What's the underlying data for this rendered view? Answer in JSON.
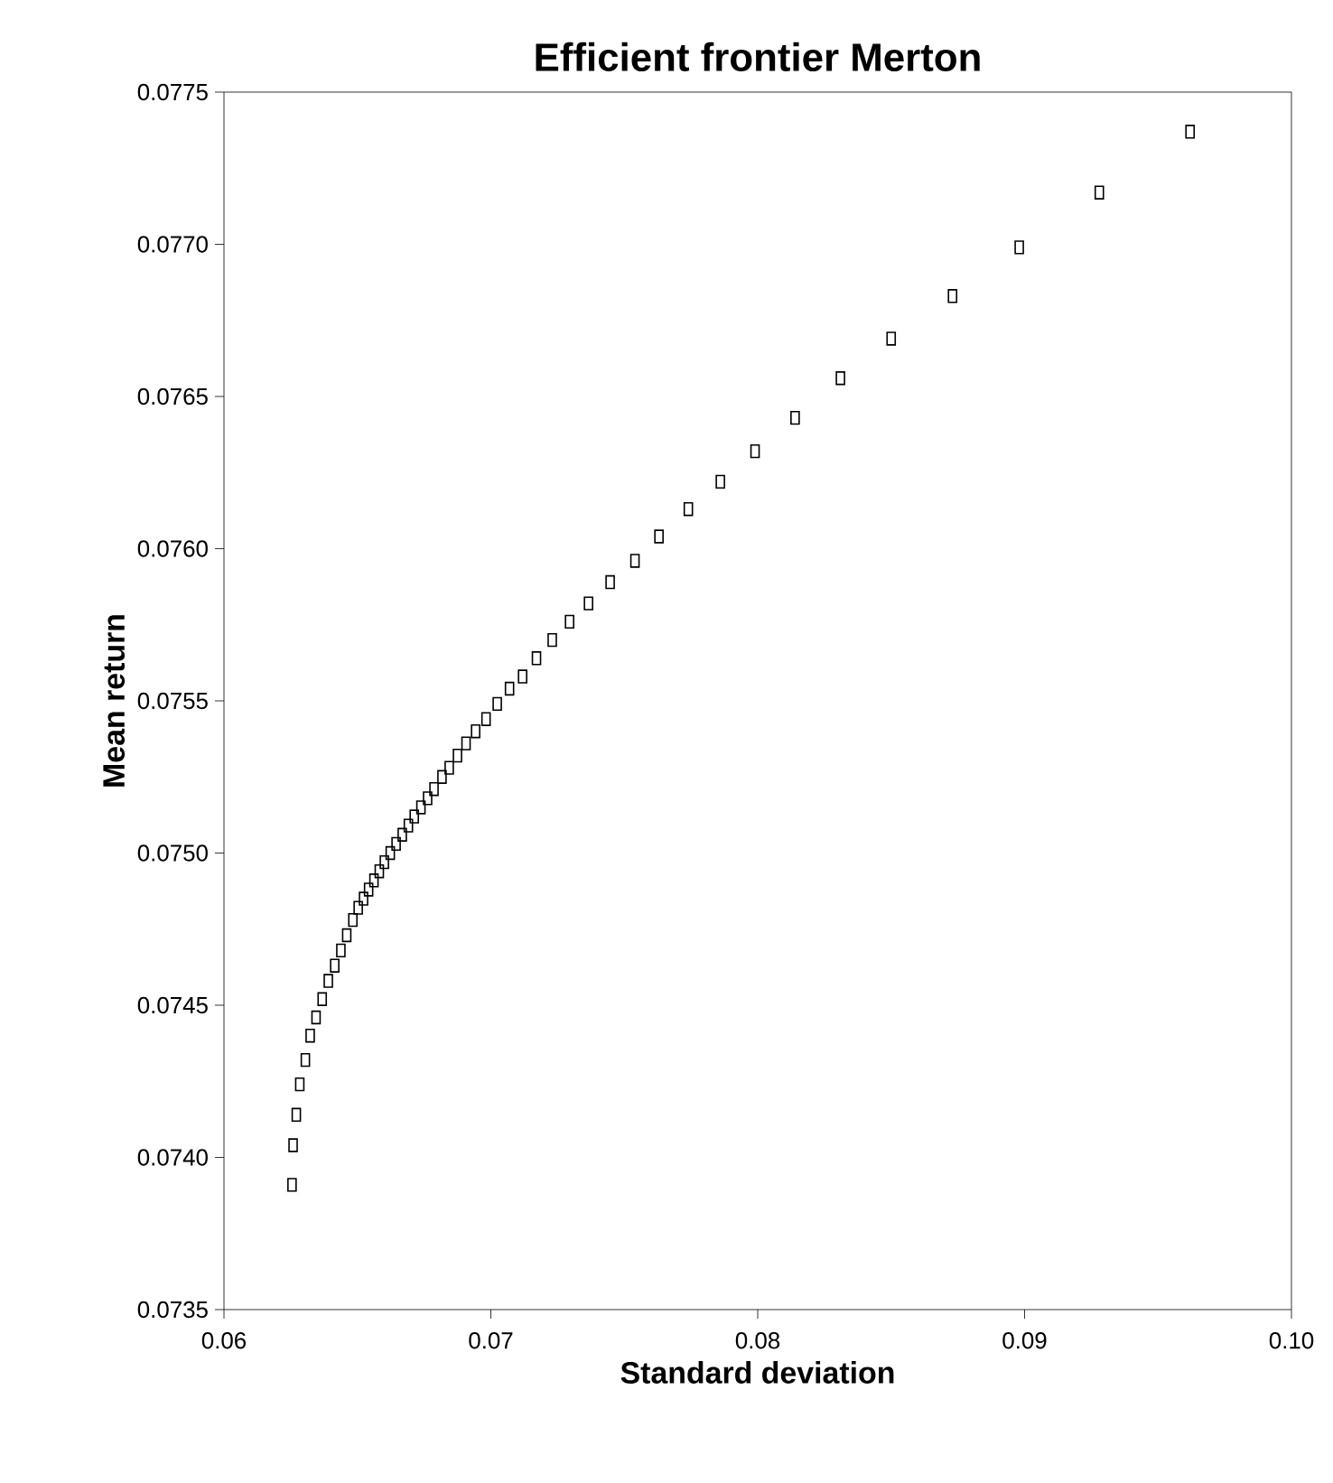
{
  "chart_data": {
    "type": "scatter",
    "title": "Efficient frontier Merton",
    "xlabel": "Standard deviation",
    "ylabel": "Mean return",
    "marker": "square",
    "xlim": [
      0.06,
      0.1
    ],
    "ylim": [
      0.0735,
      0.0775
    ],
    "xticks": [
      {
        "value": 0.06,
        "label": "0.06"
      },
      {
        "value": 0.07,
        "label": "0.07"
      },
      {
        "value": 0.08,
        "label": "0.08"
      },
      {
        "value": 0.09,
        "label": "0.09"
      },
      {
        "value": 0.1,
        "label": "0.10"
      }
    ],
    "yticks": [
      {
        "value": 0.0735,
        "label": "0.0735"
      },
      {
        "value": 0.074,
        "label": "0.0740"
      },
      {
        "value": 0.0745,
        "label": "0.0745"
      },
      {
        "value": 0.075,
        "label": "0.0750"
      },
      {
        "value": 0.0755,
        "label": "0.0755"
      },
      {
        "value": 0.076,
        "label": "0.0760"
      },
      {
        "value": 0.0765,
        "label": "0.0765"
      },
      {
        "value": 0.077,
        "label": "0.0770"
      },
      {
        "value": 0.0775,
        "label": "0.0775"
      }
    ],
    "series": [
      {
        "color": "#000000",
        "x": [
          0.0962,
          0.0928,
          0.0898,
          0.0873,
          0.085,
          0.0831,
          0.0814,
          0.0799,
          0.0786,
          0.0774,
          0.0763,
          0.0754,
          0.07447,
          0.07366,
          0.07295,
          0.0723,
          0.07171,
          0.07119,
          0.0707,
          0.07024,
          0.06982,
          0.06943,
          0.06907,
          0.06875,
          0.06844,
          0.06817,
          0.06787,
          0.06763,
          0.06738,
          0.06713,
          0.06691,
          0.06668,
          0.06645,
          0.06623,
          0.06601,
          0.06582,
          0.06562,
          0.06542,
          0.06523,
          0.06503,
          0.06483,
          0.0646,
          0.06438,
          0.06415,
          0.06391,
          0.06368,
          0.06345,
          0.06323,
          0.06305,
          0.06284,
          0.06271,
          0.06259,
          0.06255
        ],
        "values": [
          0.07737,
          0.07717,
          0.07699,
          0.07683,
          0.07669,
          0.07656,
          0.07643,
          0.07632,
          0.07622,
          0.07613,
          0.07604,
          0.07596,
          0.07589,
          0.07582,
          0.07576,
          0.0757,
          0.07564,
          0.07558,
          0.07554,
          0.07549,
          0.07544,
          0.0754,
          0.07536,
          0.07532,
          0.07528,
          0.07525,
          0.07521,
          0.07518,
          0.07515,
          0.07512,
          0.07509,
          0.07506,
          0.07503,
          0.075,
          0.07497,
          0.07494,
          0.07491,
          0.07488,
          0.07485,
          0.07482,
          0.07478,
          0.07473,
          0.07468,
          0.07463,
          0.07458,
          0.07452,
          0.07446,
          0.0744,
          0.07432,
          0.07424,
          0.07414,
          0.07404,
          0.07391
        ]
      }
    ]
  }
}
